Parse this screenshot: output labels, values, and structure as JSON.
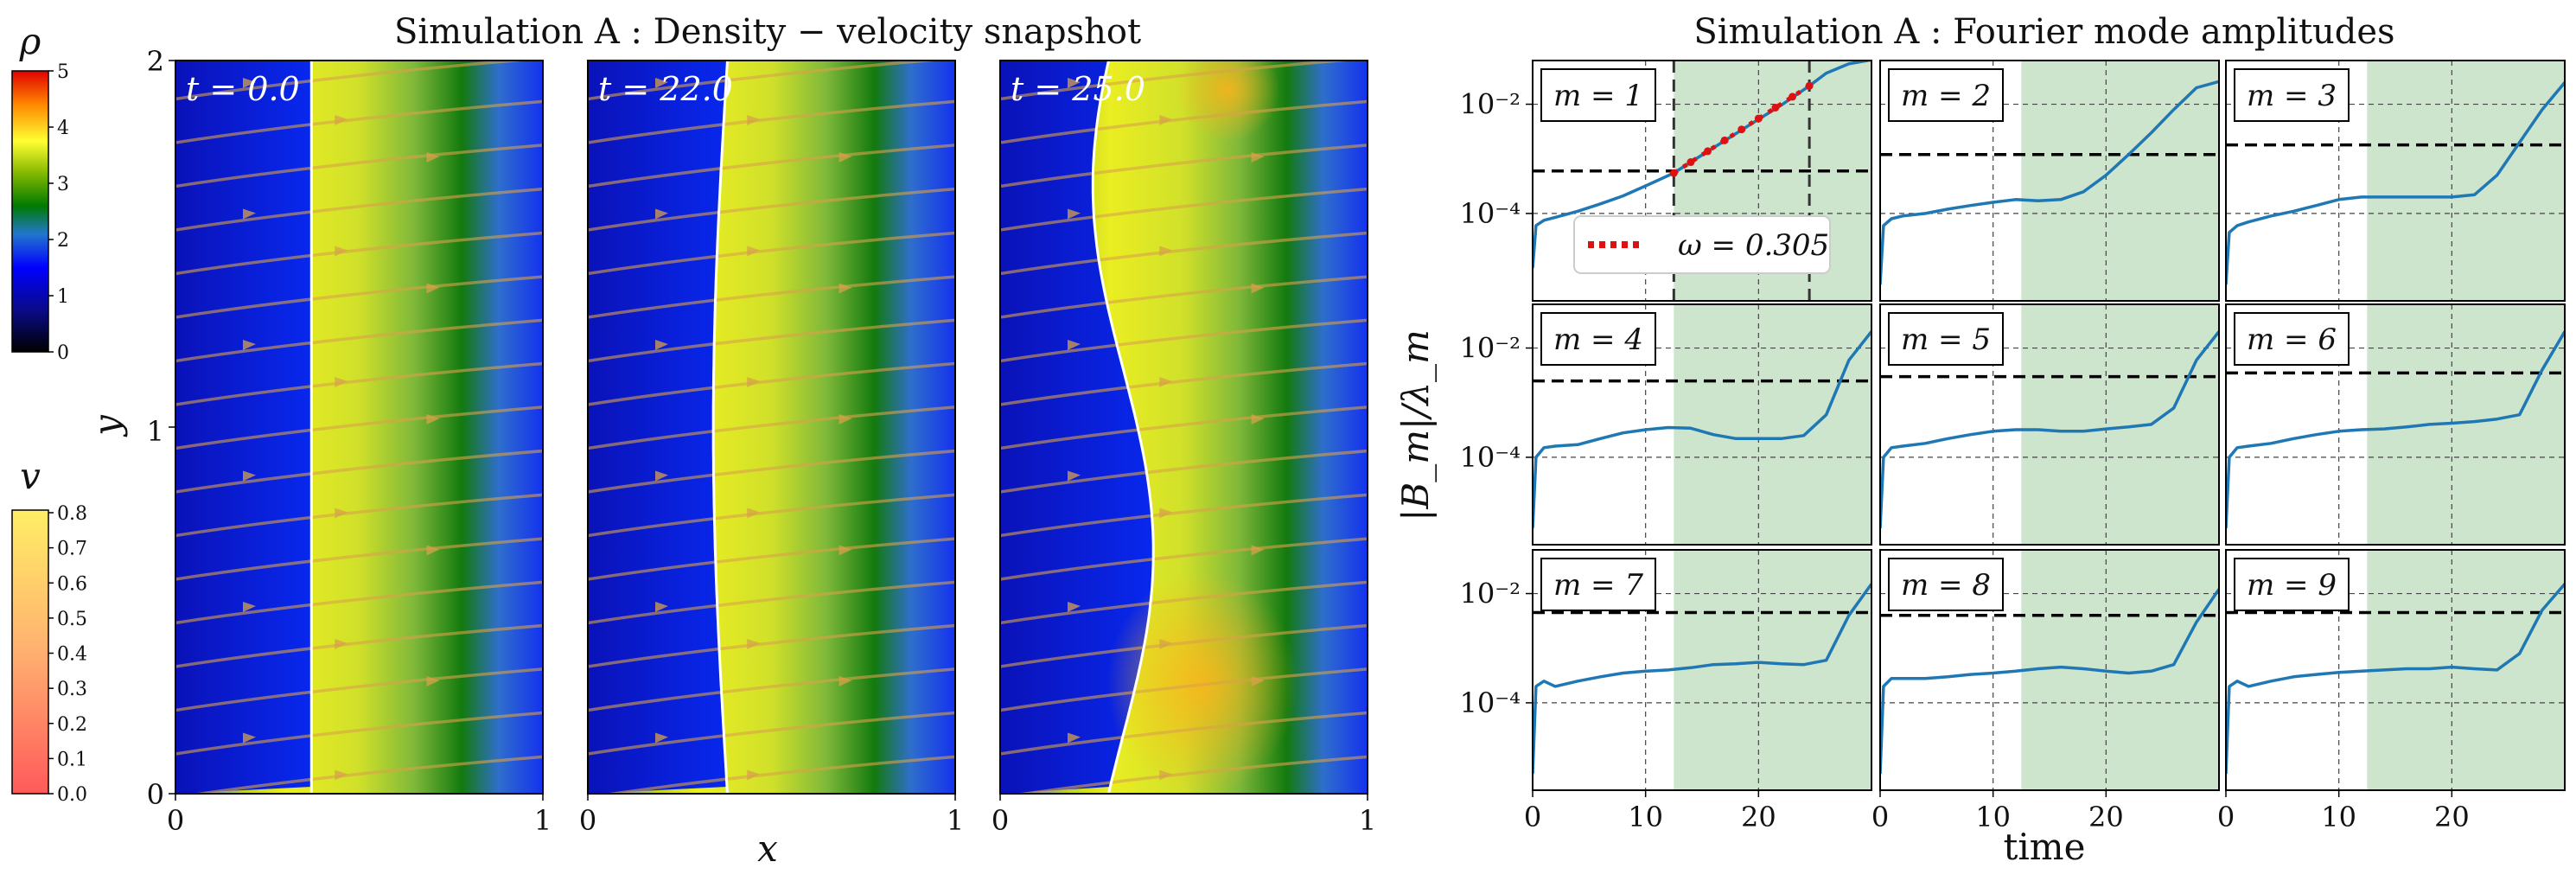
{
  "density_figure": {
    "title": "Simulation A : Density − velocity snapshot",
    "xlabel": "x",
    "ylabel": "y",
    "x_ticks": [
      "0",
      "1"
    ],
    "y_ticks": [
      "0",
      "1",
      "2"
    ],
    "panels": [
      {
        "time_label": "t = 0.0",
        "interface_amplitude": 0.0,
        "interface_x": 0.37
      },
      {
        "time_label": "t = 22.0",
        "interface_amplitude": 0.012,
        "interface_x": 0.38
      },
      {
        "time_label": "t = 25.0",
        "interface_amplitude": 0.06,
        "interface_x": 0.37
      }
    ],
    "rho_colorbar": {
      "label": "ρ",
      "ticks": [
        "0",
        "1",
        "2",
        "3",
        "4",
        "5"
      ],
      "range": [
        0,
        5
      ]
    },
    "v_colorbar": {
      "label": "v",
      "ticks": [
        "0.0",
        "0.1",
        "0.2",
        "0.3",
        "0.4",
        "0.5",
        "0.6",
        "0.7",
        "0.8"
      ],
      "range": [
        0,
        0.8
      ]
    }
  },
  "chart_data": {
    "type": "line",
    "title": "Simulation A : Fourier mode amplitudes",
    "xlabel": "time",
    "ylabel": "|B_m|/λ_m",
    "x_ticks": [
      "0",
      "10",
      "20"
    ],
    "y_ticks": [
      "10⁻⁴",
      "10⁻²"
    ],
    "xlim": [
      0,
      30
    ],
    "ylim_log10": [
      -5.6,
      -1.2
    ],
    "growth_window": [
      12.5,
      30
    ],
    "fit_window": [
      12.5,
      24.5
    ],
    "fit_label": "ω = 0.305",
    "series": [
      {
        "name": "m = 1",
        "threshold": 0.0006,
        "x": [
          0,
          0.3,
          1,
          2,
          4,
          6,
          8,
          10,
          12.5,
          14,
          16,
          18,
          20,
          22,
          24.5,
          26,
          28,
          30
        ],
        "y": [
          1e-05,
          6e-05,
          7.5e-05,
          8.5e-05,
          0.00011,
          0.00015,
          0.00021,
          0.00032,
          0.00055,
          0.00087,
          0.00159,
          0.0029,
          0.0053,
          0.0096,
          0.0217,
          0.037,
          0.055,
          0.065
        ]
      },
      {
        "name": "m = 2",
        "threshold": 0.0012,
        "x": [
          0,
          0.3,
          1,
          2,
          4,
          6,
          8,
          10,
          12,
          14,
          16,
          18,
          20,
          22,
          24,
          26,
          28,
          30
        ],
        "y": [
          5e-06,
          6e-05,
          8e-05,
          9e-05,
          0.0001,
          0.00012,
          0.00014,
          0.00016,
          0.00018,
          0.00017,
          0.00018,
          0.00025,
          0.0005,
          0.0012,
          0.003,
          0.008,
          0.02,
          0.026
        ]
      },
      {
        "name": "m = 3",
        "threshold": 0.0018,
        "x": [
          0,
          0.3,
          1,
          2,
          4,
          6,
          8,
          10,
          12,
          14,
          16,
          18,
          20,
          22,
          24,
          26,
          28,
          30
        ],
        "y": [
          5e-06,
          4.5e-05,
          6e-05,
          7e-05,
          9e-05,
          0.00011,
          0.00014,
          0.00018,
          0.0002,
          0.0002,
          0.0002,
          0.0002,
          0.0002,
          0.00022,
          0.0005,
          0.002,
          0.008,
          0.025
        ]
      },
      {
        "name": "m = 4",
        "threshold": 0.0025,
        "x": [
          0,
          0.3,
          1,
          2,
          4,
          6,
          8,
          10,
          12,
          14,
          16,
          18,
          20,
          22,
          24,
          26,
          28,
          30
        ],
        "y": [
          5e-06,
          0.0001,
          0.00015,
          0.00016,
          0.00017,
          0.00022,
          0.00028,
          0.00032,
          0.00035,
          0.00034,
          0.00026,
          0.00022,
          0.00022,
          0.00022,
          0.00025,
          0.0006,
          0.006,
          0.02
        ]
      },
      {
        "name": "m = 5",
        "threshold": 0.003,
        "x": [
          0,
          0.3,
          1,
          2,
          4,
          6,
          8,
          10,
          12,
          14,
          16,
          18,
          20,
          22,
          24,
          26,
          28,
          30
        ],
        "y": [
          5e-06,
          0.0001,
          0.00015,
          0.00016,
          0.00018,
          0.00022,
          0.00026,
          0.0003,
          0.00032,
          0.00032,
          0.0003,
          0.0003,
          0.00033,
          0.00036,
          0.0004,
          0.0008,
          0.006,
          0.02
        ]
      },
      {
        "name": "m = 6",
        "threshold": 0.0035,
        "x": [
          0,
          0.3,
          1,
          2,
          4,
          6,
          8,
          10,
          12,
          14,
          16,
          18,
          20,
          22,
          24,
          26,
          28,
          30
        ],
        "y": [
          5e-06,
          0.0001,
          0.00015,
          0.00016,
          0.00018,
          0.00022,
          0.00026,
          0.0003,
          0.00032,
          0.00033,
          0.00036,
          0.0004,
          0.00042,
          0.00045,
          0.0005,
          0.0006,
          0.004,
          0.02
        ]
      },
      {
        "name": "m = 7",
        "threshold": 0.0045,
        "x": [
          0,
          0.3,
          1,
          2,
          4,
          6,
          8,
          10,
          12,
          14,
          16,
          18,
          20,
          22,
          24,
          26,
          28,
          30
        ],
        "y": [
          5e-06,
          0.0002,
          0.00025,
          0.0002,
          0.00025,
          0.0003,
          0.00035,
          0.00038,
          0.0004,
          0.00044,
          0.0005,
          0.00052,
          0.00055,
          0.00052,
          0.0005,
          0.0006,
          0.004,
          0.015
        ]
      },
      {
        "name": "m = 8",
        "threshold": 0.004,
        "x": [
          0,
          0.3,
          1,
          2,
          4,
          6,
          8,
          10,
          12,
          14,
          16,
          18,
          20,
          22,
          24,
          26,
          28,
          30
        ],
        "y": [
          5e-06,
          0.0002,
          0.00028,
          0.00028,
          0.00028,
          0.0003,
          0.00033,
          0.00035,
          0.00038,
          0.00042,
          0.00045,
          0.00042,
          0.00038,
          0.00035,
          0.00038,
          0.0005,
          0.003,
          0.012
        ]
      },
      {
        "name": "m = 9",
        "threshold": 0.0045,
        "x": [
          0,
          0.3,
          1,
          2,
          4,
          6,
          8,
          10,
          12,
          14,
          16,
          18,
          20,
          22,
          24,
          26,
          28,
          30
        ],
        "y": [
          5e-06,
          0.0002,
          0.00025,
          0.0002,
          0.00025,
          0.0003,
          0.00033,
          0.00036,
          0.00038,
          0.0004,
          0.00042,
          0.00042,
          0.00045,
          0.00042,
          0.0004,
          0.0008,
          0.005,
          0.015
        ]
      }
    ]
  }
}
